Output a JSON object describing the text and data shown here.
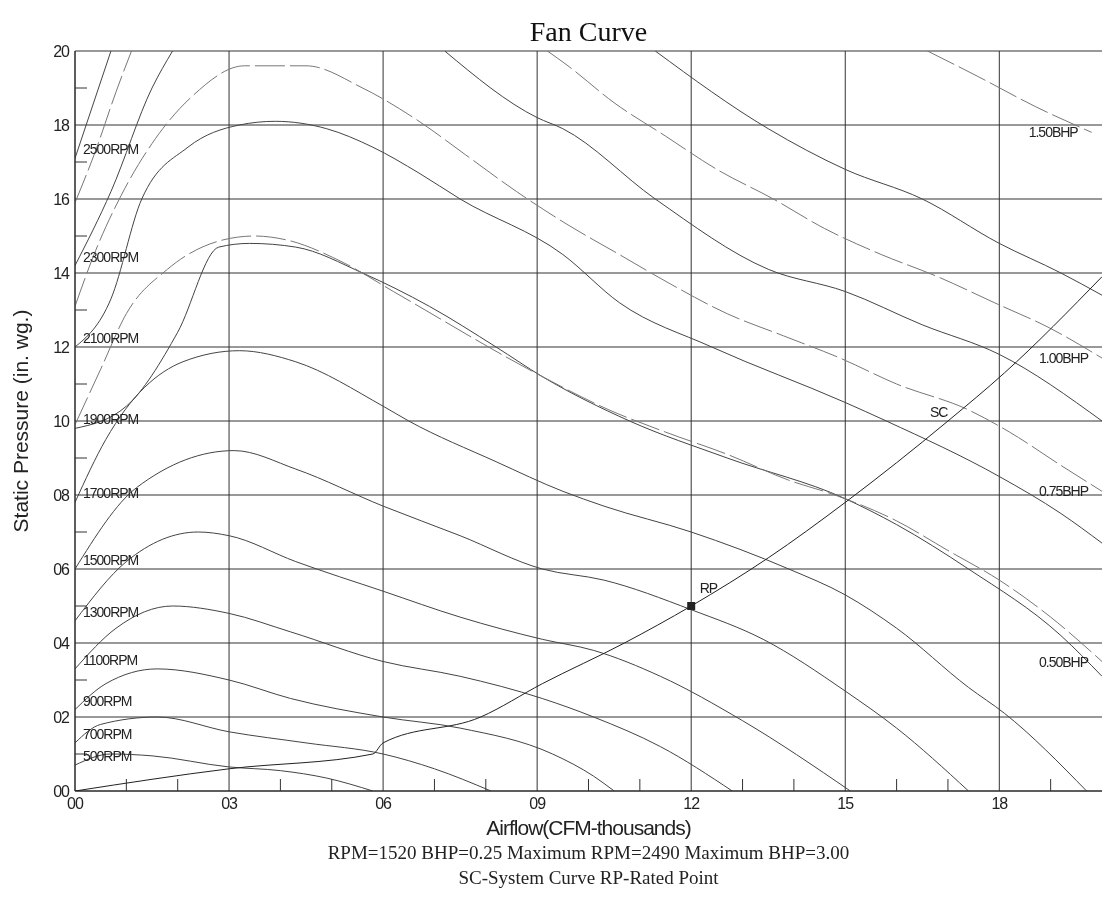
{
  "chart_data": {
    "type": "line",
    "title": "Fan Curve",
    "xlabel": "Airflow(CFM-thousands)",
    "ylabel": "Static Pressure (in. wg.)",
    "annotations": [
      "RPM=1520 BHP=0.25 Maximum RPM=2490 Maximum BHP=3.00",
      "SC-System Curve RP-Rated Point"
    ],
    "xlim": [
      0,
      20
    ],
    "ylim": [
      0,
      20
    ],
    "xticks": [
      {
        "value": 0,
        "label": "00"
      },
      {
        "value": 1,
        "label": null
      },
      {
        "value": 2,
        "label": null
      },
      {
        "value": 3,
        "label": "03"
      },
      {
        "value": 4,
        "label": null
      },
      {
        "value": 5,
        "label": null
      },
      {
        "value": 6,
        "label": "06"
      },
      {
        "value": 7,
        "label": null
      },
      {
        "value": 8,
        "label": null
      },
      {
        "value": 9,
        "label": "09"
      },
      {
        "value": 10,
        "label": null
      },
      {
        "value": 11,
        "label": null
      },
      {
        "value": 12,
        "label": "12"
      },
      {
        "value": 13,
        "label": null
      },
      {
        "value": 14,
        "label": null
      },
      {
        "value": 15,
        "label": "15"
      },
      {
        "value": 16,
        "label": null
      },
      {
        "value": 17,
        "label": null
      },
      {
        "value": 18,
        "label": "18"
      },
      {
        "value": 19,
        "label": null
      }
    ],
    "yticks": [
      {
        "value": 0,
        "label": "00"
      },
      {
        "value": 1,
        "label": null
      },
      {
        "value": 2,
        "label": "02"
      },
      {
        "value": 3,
        "label": null
      },
      {
        "value": 4,
        "label": "04"
      },
      {
        "value": 5,
        "label": null
      },
      {
        "value": 6,
        "label": "06"
      },
      {
        "value": 7,
        "label": null
      },
      {
        "value": 8,
        "label": "08"
      },
      {
        "value": 9,
        "label": null
      },
      {
        "value": 10,
        "label": "10"
      },
      {
        "value": 11,
        "label": null
      },
      {
        "value": 12,
        "label": "12"
      },
      {
        "value": 13,
        "label": null
      },
      {
        "value": 14,
        "label": "14"
      },
      {
        "value": 15,
        "label": null
      },
      {
        "value": 16,
        "label": "16"
      },
      {
        "value": 17,
        "label": null
      },
      {
        "value": 18,
        "label": "18"
      },
      {
        "value": 19,
        "label": null
      },
      {
        "value": 20,
        "label": "20"
      }
    ],
    "grid": true,
    "marker": "none",
    "line_style": "solid",
    "series": [
      {
        "name": "500RPM",
        "color": "#444444",
        "x": [
          0,
          0.7,
          1.5,
          3,
          4,
          4.9,
          5.8
        ],
        "values": [
          0.7,
          1,
          0.95,
          0.65,
          0.55,
          0.35,
          0
        ]
      },
      {
        "name": "700RPM",
        "color": "#444444",
        "x": [
          0,
          0.5,
          1.6,
          3,
          4.5,
          6,
          7,
          8.1
        ],
        "values": [
          1.3,
          1.8,
          2,
          1.6,
          1.3,
          1,
          0.6,
          0
        ]
      },
      {
        "name": "900RPM",
        "color": "#444444",
        "x": [
          0,
          0.6,
          1.6,
          3,
          4.2,
          6,
          7.5,
          9.3,
          10.1,
          10.5
        ],
        "values": [
          2.2,
          2.9,
          3.3,
          3,
          2.5,
          2,
          1.7,
          1,
          0.4,
          0
        ]
      },
      {
        "name": "1100RPM",
        "color": "#444444",
        "x": [
          0,
          0.8,
          1.9,
          3,
          4.2,
          6,
          7.5,
          9.1,
          10.1,
          11.4,
          12.8
        ],
        "values": [
          3.3,
          4.4,
          5,
          4.8,
          4.3,
          3.5,
          3.1,
          2.5,
          2,
          1.2,
          0
        ]
      },
      {
        "name": "1300RPM",
        "color": "#444444",
        "x": [
          0,
          1,
          2.4,
          3,
          4.3,
          6,
          7.5,
          9.1,
          10.1,
          11.4,
          13,
          15.1
        ],
        "values": [
          4.6,
          6.2,
          7,
          6.9,
          6.2,
          5.4,
          4.7,
          4.1,
          3.8,
          3.1,
          1.9,
          0
        ]
      },
      {
        "name": "1500RPM",
        "color": "#444444",
        "x": [
          0,
          1.2,
          3.1,
          4.3,
          6,
          7.5,
          9.1,
          10.3,
          12,
          13.4,
          15,
          16,
          17.4
        ],
        "values": [
          6,
          8.2,
          9.2,
          8.7,
          7.7,
          6.9,
          6,
          5.7,
          4.9,
          4.1,
          2.7,
          1.7,
          0
        ]
      },
      {
        "name": "1700RPM",
        "color": "#444444",
        "x": [
          0,
          0.6,
          2.1,
          3.2,
          4.3,
          6,
          6.5,
          8.2,
          9.5,
          10.3,
          12,
          13.9,
          15,
          16,
          17.4,
          18.1,
          19.7
        ],
        "values": [
          7.8,
          9.5,
          11.6,
          11.9,
          11.6,
          10.4,
          10,
          8.9,
          8.1,
          7.7,
          7,
          6,
          5.3,
          4.4,
          2.8,
          2.1,
          0
        ]
      },
      {
        "name": "1900RPM",
        "color": "#444444",
        "x": [
          0,
          1,
          2,
          2.8,
          3.4,
          4.3,
          5.6,
          6.9,
          8.2,
          9.1,
          10.8,
          12.7,
          15,
          16,
          17.4,
          19.2,
          20
        ],
        "values": [
          9.8,
          10.4,
          12.4,
          14.7,
          14.8,
          14.7,
          14,
          13.1,
          12,
          11.2,
          10,
          9,
          7.9,
          7.2,
          6,
          4.2,
          3.1
        ]
      },
      {
        "name": "2100RPM",
        "color": "#444444",
        "x": [
          0,
          0.7,
          1.3,
          2.2,
          3.2,
          3.9,
          4.9,
          5.8,
          6.7,
          7.5,
          9.5,
          10.6,
          12.4,
          15,
          15.8,
          18,
          19.2,
          20
        ],
        "values": [
          12,
          13.3,
          16,
          17.4,
          18,
          18.1,
          17.9,
          17.4,
          16.7,
          16,
          14.5,
          13.2,
          12,
          10.5,
          10,
          8.5,
          7.5,
          6.7
        ]
      },
      {
        "name": "2300RPM",
        "color": "#444444",
        "x": [
          0,
          0.7,
          1.5,
          1.9,
          4.5,
          7.2,
          9,
          9.5,
          11.3,
          13.5,
          15,
          16.5,
          18,
          20
        ],
        "values": [
          14.2,
          16.2,
          19,
          20,
          null,
          20,
          18.2,
          17.9,
          16,
          14.1,
          13.5,
          12.6,
          11.8,
          10
        ]
      },
      {
        "name": "2500RPM",
        "color": "#444444",
        "x": [
          0,
          0.7,
          6,
          11.3,
          13.5,
          15,
          16.5,
          18,
          19.2,
          20
        ],
        "values": [
          17.1,
          20,
          null,
          20,
          17.9,
          16.8,
          16,
          14.8,
          14,
          13.4
        ]
      },
      {
        "name": "0.50BHP",
        "color": "#777777",
        "line_style": "dashed",
        "x": [
          0,
          0.5,
          1,
          1.8,
          2.9,
          3.5,
          4.1,
          5.2,
          6.2,
          9.1,
          10.4,
          11.5,
          12.7,
          13.9,
          14.8,
          16,
          17,
          18,
          19,
          20
        ],
        "values": [
          9.9,
          11.4,
          12.9,
          14.1,
          14.9,
          15,
          14.9,
          14.3,
          13.5,
          11.2,
          10.3,
          9.7,
          9.1,
          8.4,
          8,
          7.3,
          6.5,
          5.7,
          4.7,
          3.5
        ]
      },
      {
        "name": "0.75BHP",
        "color": "#777777",
        "line_style": "dashed",
        "x": [
          0,
          0.4,
          0.9,
          1.5,
          2.3,
          3.3,
          4.5,
          5.6,
          6.7,
          7.6,
          8.6,
          9.6,
          10.6,
          11.6,
          12.7,
          13.8,
          14.9,
          16,
          17.4,
          18.2,
          19.2,
          20
        ],
        "values": [
          13.1,
          14.6,
          16.1,
          17.5,
          18.8,
          19.6,
          19.6,
          19,
          18.1,
          17.2,
          16.2,
          15.3,
          14.5,
          13.7,
          12.9,
          12.3,
          11.7,
          11,
          10.3,
          9.7,
          8.8,
          8.1
        ]
      },
      {
        "name": "1.00BHP",
        "color": "#777777",
        "line_style": "dashed",
        "x": [
          0,
          0.4,
          0.8,
          1.1,
          5,
          9.2,
          9.6,
          10.5,
          11.5,
          12.5,
          13.6,
          14.6,
          15.7,
          16.8,
          17.9,
          19,
          20
        ],
        "values": [
          15.9,
          17.3,
          18.9,
          20,
          null,
          20,
          19.6,
          18.6,
          17.7,
          16.8,
          16,
          15.2,
          14.5,
          13.9,
          13.2,
          12.5,
          11.7
        ]
      },
      {
        "name": "1.50BHP",
        "color": "#777777",
        "line_style": "dashed",
        "x": [
          16.6,
          17.6,
          18.7,
          19.8
        ],
        "values": [
          20,
          19.3,
          18.5,
          17.8
        ]
      },
      {
        "name": "SC",
        "color": "#222222",
        "x": [
          0,
          3,
          5.8,
          6,
          7.9,
          9.1,
          10.7,
          12,
          13.5,
          15,
          17,
          18.1,
          20
        ],
        "values": [
          0,
          0.6,
          1,
          1.3,
          2,
          2.9,
          4,
          5,
          6.3,
          7.8,
          10,
          11.3,
          13.9
        ]
      },
      {
        "name": "RP",
        "type": "scatter",
        "marker": "square",
        "color": "#222222",
        "x": [
          12
        ],
        "values": [
          5
        ]
      }
    ]
  }
}
